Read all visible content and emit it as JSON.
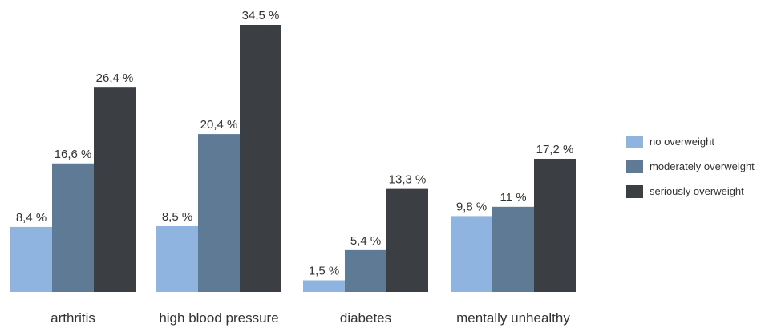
{
  "chart_data": {
    "type": "bar",
    "title": "",
    "xlabel": "",
    "ylabel": "",
    "ylim": [
      0,
      35
    ],
    "grid": false,
    "legend_position": "right",
    "categories": [
      "arthritis",
      "high blood pressure",
      "diabetes",
      "mentally unhealthy"
    ],
    "series": [
      {
        "name": "no overweight",
        "color": "#8fb4e0",
        "values": [
          8.4,
          8.5,
          1.5,
          9.8
        ],
        "labels": [
          "8,4 %",
          "8,5 %",
          "1,5 %",
          "9,8 %"
        ]
      },
      {
        "name": "moderately overweight",
        "color": "#5f7a95",
        "values": [
          16.6,
          20.4,
          5.4,
          11
        ],
        "labels": [
          "16,6 %",
          "20,4 %",
          "5,4 %",
          "11 %"
        ]
      },
      {
        "name": "seriously overweight",
        "color": "#3b3e42",
        "values": [
          26.4,
          34.5,
          13.3,
          17.2
        ],
        "labels": [
          "26,4 %",
          "34,5 %",
          "13,3 %",
          "17,2 %"
        ]
      }
    ]
  }
}
